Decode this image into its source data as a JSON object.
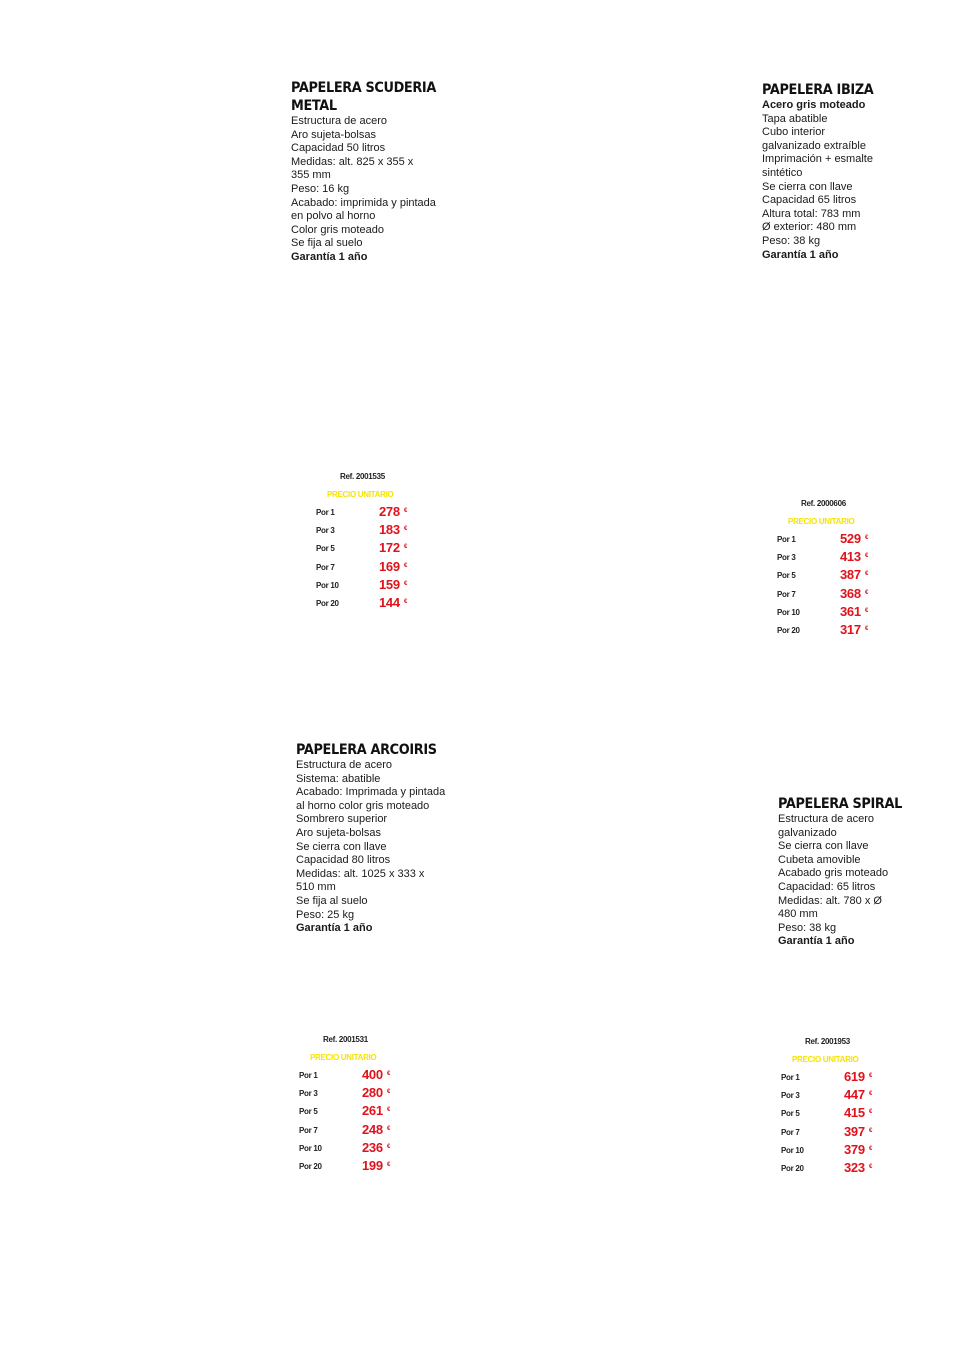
{
  "products": [
    {
      "title_lines": [
        "PAPELERA SCUDERIA",
        "METAL"
      ],
      "specs": [
        {
          "text": "Estructura de acero",
          "bold": false
        },
        {
          "text": "Aro sujeta-bolsas",
          "bold": false
        },
        {
          "text": "Capacidad 50 litros",
          "bold": false
        },
        {
          "text": "Medidas: alt. 825 x 355 x",
          "bold": false
        },
        {
          "text": "355 mm",
          "bold": false
        },
        {
          "text": "Peso: 16 kg",
          "bold": false
        },
        {
          "text": "Acabado: imprimida y pintada",
          "bold": false
        },
        {
          "text": "en polvo al horno",
          "bold": false
        },
        {
          "text": "Color gris moteado",
          "bold": false
        },
        {
          "text": "Se fija al suelo",
          "bold": false
        },
        {
          "text": "Garantía 1 año",
          "bold": true
        }
      ],
      "ref": "Ref. 2001535",
      "precio_label": "PRECIO UNITARIO",
      "prices": [
        {
          "label": "Por 1",
          "amount": "278",
          "currency": "€"
        },
        {
          "label": "Por 3",
          "amount": "183",
          "currency": "€"
        },
        {
          "label": "Por 5",
          "amount": "172",
          "currency": "€"
        },
        {
          "label": "Por 7",
          "amount": "169",
          "currency": "€"
        },
        {
          "label": "Por 10",
          "amount": "159",
          "currency": "€"
        },
        {
          "label": "Por 20",
          "amount": "144",
          "currency": "€"
        }
      ]
    },
    {
      "title_lines": [
        "PAPELERA IBIZA"
      ],
      "specs": [
        {
          "text": "Acero gris moteado",
          "bold": true
        },
        {
          "text": "Tapa abatible",
          "bold": false
        },
        {
          "text": "Cubo interior",
          "bold": false
        },
        {
          "text": "galvanizado extraíble",
          "bold": false
        },
        {
          "text": "Imprimación + esmalte",
          "bold": false
        },
        {
          "text": "sintético",
          "bold": false
        },
        {
          "text": "Se cierra con llave",
          "bold": false
        },
        {
          "text": "Capacidad 65 litros",
          "bold": false
        },
        {
          "text": "Altura total: 783 mm",
          "bold": false
        },
        {
          "text": "Ø exterior: 480 mm",
          "bold": false
        },
        {
          "text": "Peso: 38 kg",
          "bold": false
        },
        {
          "text": "Garantía 1 año",
          "bold": true
        }
      ],
      "ref": "Ref. 2000606",
      "precio_label": "PRECIO UNITARIO",
      "prices": [
        {
          "label": "Por 1",
          "amount": "529",
          "currency": "€"
        },
        {
          "label": "Por 3",
          "amount": "413",
          "currency": "€"
        },
        {
          "label": "Por 5",
          "amount": "387",
          "currency": "€"
        },
        {
          "label": "Por 7",
          "amount": "368",
          "currency": "€"
        },
        {
          "label": "Por 10",
          "amount": "361",
          "currency": "€"
        },
        {
          "label": "Por 20",
          "amount": "317",
          "currency": "€"
        }
      ]
    },
    {
      "title_lines": [
        "PAPELERA ARCOIRIS"
      ],
      "specs": [
        {
          "text": "Estructura de acero",
          "bold": false
        },
        {
          "text": "Sistema: abatible",
          "bold": false
        },
        {
          "text": "Acabado: Imprimada y pintada",
          "bold": false
        },
        {
          "text": "al horno color gris moteado",
          "bold": false
        },
        {
          "text": "Sombrero superior",
          "bold": false
        },
        {
          "text": "Aro sujeta-bolsas",
          "bold": false
        },
        {
          "text": "Se cierra con llave",
          "bold": false
        },
        {
          "text": "Capacidad 80 litros",
          "bold": false
        },
        {
          "text": "Medidas: alt. 1025 x 333 x",
          "bold": false
        },
        {
          "text": "510 mm",
          "bold": false
        },
        {
          "text": "Se fija al suelo",
          "bold": false
        },
        {
          "text": "Peso: 25 kg",
          "bold": false
        },
        {
          "text": "Garantía 1 año",
          "bold": true
        }
      ],
      "ref": "Ref. 2001531",
      "precio_label": "PRECIO UNITARIO",
      "prices": [
        {
          "label": "Por 1",
          "amount": "400",
          "currency": "€"
        },
        {
          "label": "Por 3",
          "amount": "280",
          "currency": "€"
        },
        {
          "label": "Por 5",
          "amount": "261",
          "currency": "€"
        },
        {
          "label": "Por 7",
          "amount": "248",
          "currency": "€"
        },
        {
          "label": "Por 10",
          "amount": "236",
          "currency": "€"
        },
        {
          "label": "Por 20",
          "amount": "199",
          "currency": "€"
        }
      ]
    },
    {
      "title_lines": [
        "PAPELERA SPIRAL"
      ],
      "specs": [
        {
          "text": "Estructura de acero",
          "bold": false
        },
        {
          "text": "galvanizado",
          "bold": false
        },
        {
          "text": "Se cierra con llave",
          "bold": false
        },
        {
          "text": "Cubeta amovible",
          "bold": false
        },
        {
          "text": "Acabado gris moteado",
          "bold": false
        },
        {
          "text": "Capacidad: 65 litros",
          "bold": false
        },
        {
          "text": "Medidas: alt. 780 x Ø",
          "bold": false
        },
        {
          "text": "480 mm",
          "bold": false
        },
        {
          "text": "Peso: 38 kg",
          "bold": false
        },
        {
          "text": "Garantía 1 año",
          "bold": true
        }
      ],
      "ref": "Ref. 2001953",
      "precio_label": "PRECIO UNITARIO",
      "prices": [
        {
          "label": "Por 1",
          "amount": "619",
          "currency": "€"
        },
        {
          "label": "Por 3",
          "amount": "447",
          "currency": "€"
        },
        {
          "label": "Por 5",
          "amount": "415",
          "currency": "€"
        },
        {
          "label": "Por 7",
          "amount": "397",
          "currency": "€"
        },
        {
          "label": "Por 10",
          "amount": "379",
          "currency": "€"
        },
        {
          "label": "Por 20",
          "amount": "323",
          "currency": "€"
        }
      ]
    }
  ],
  "colors": {
    "price_red": "#e0121b",
    "precio_yellow": "#f5e400",
    "text_dark": "#1a1a1a"
  }
}
